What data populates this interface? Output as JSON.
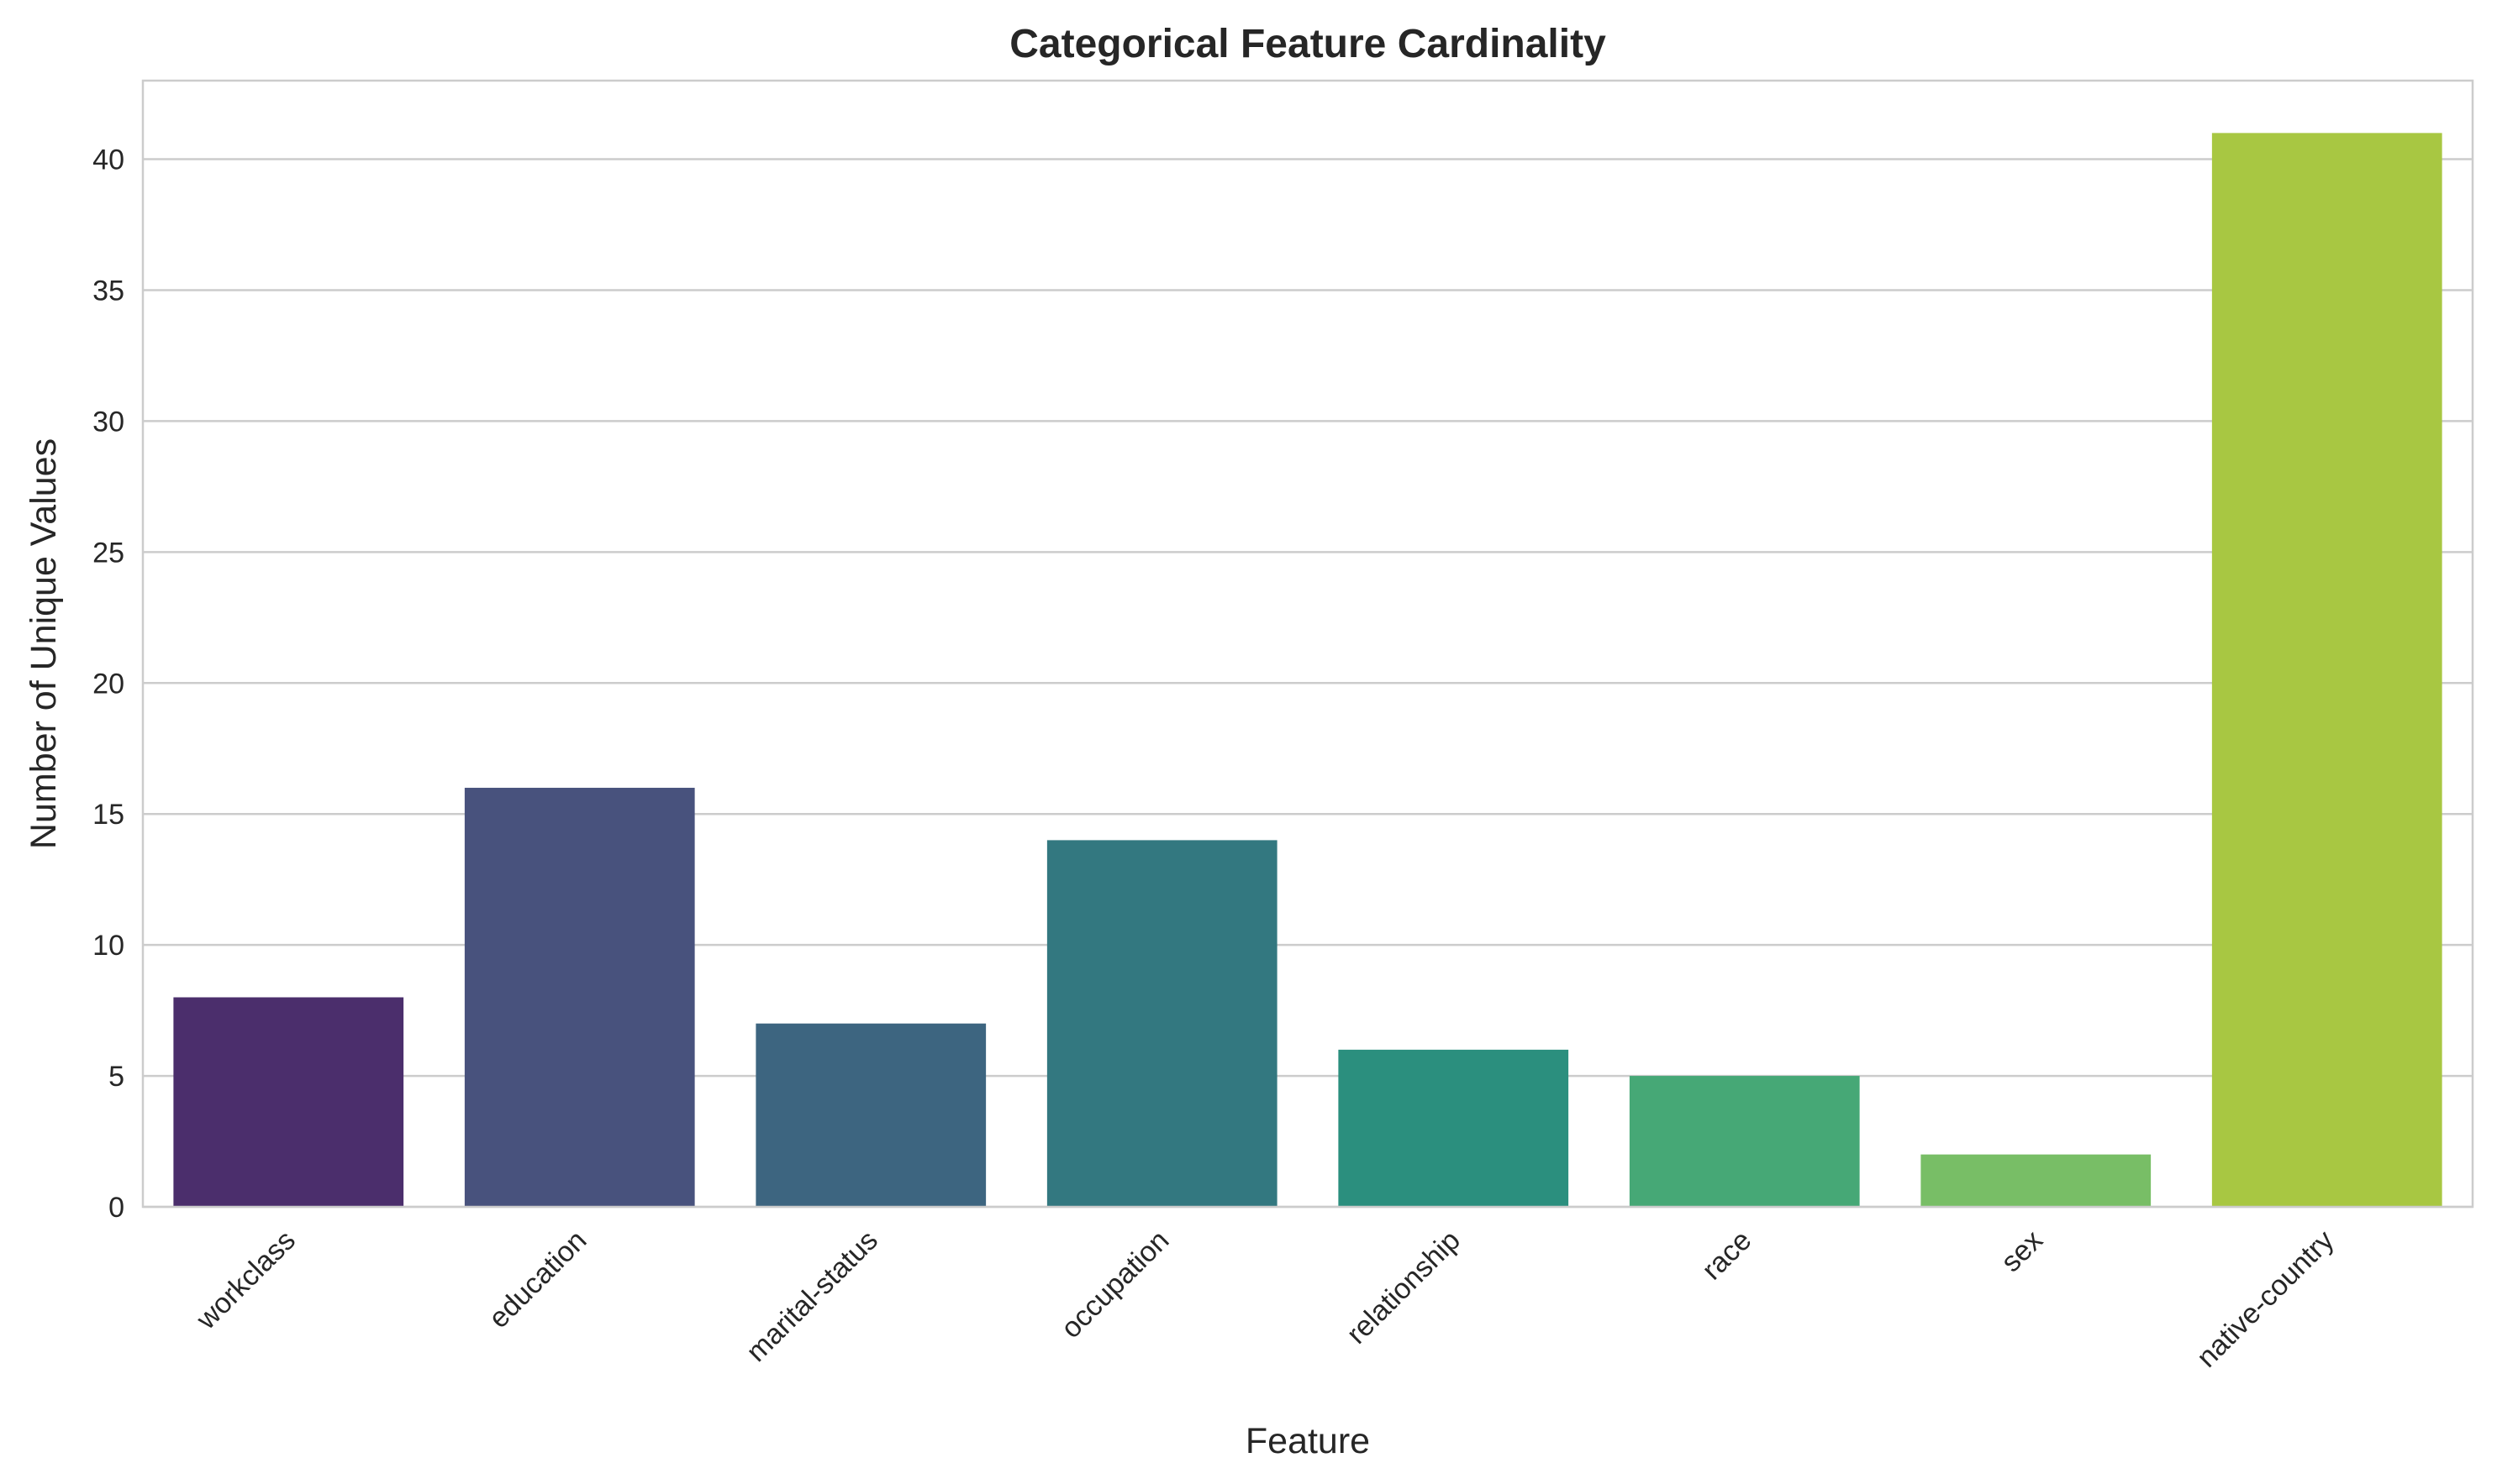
{
  "chart_data": {
    "type": "bar",
    "title": "Categorical Feature Cardinality",
    "xlabel": "Feature",
    "ylabel": "Number of Unique Values",
    "categories": [
      "workclass",
      "education",
      "marital-status",
      "occupation",
      "relationship",
      "race",
      "sex",
      "native-country"
    ],
    "values": [
      8,
      16,
      7,
      14,
      6,
      5,
      2,
      41
    ],
    "colors": [
      "#4b2e6c",
      "#48527d",
      "#3d6580",
      "#337880",
      "#2b8f7e",
      "#46a876",
      "#78be66",
      "#a8c742"
    ],
    "ylim": [
      0,
      43
    ],
    "yticks": [
      0,
      5,
      10,
      15,
      20,
      25,
      30,
      35,
      40
    ],
    "grid": true,
    "grid_axis": "y",
    "legend": "none"
  }
}
